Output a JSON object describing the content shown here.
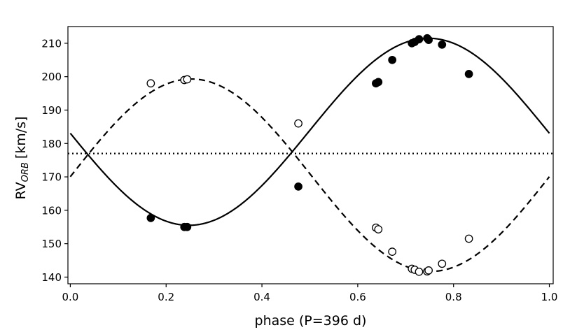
{
  "chart_data": {
    "type": "scatter",
    "xlabel": "phase (P=396 d)",
    "ylabel": {
      "main": "RV",
      "subscript": "ORB",
      "unit": "[km/s]"
    },
    "xlim": [
      -0.005,
      1.008
    ],
    "ylim": [
      138,
      215
    ],
    "xticks": [
      0.0,
      0.2,
      0.4,
      0.6,
      0.8,
      1.0
    ],
    "xtick_labels": [
      "0.0",
      "0.2",
      "0.4",
      "0.6",
      "0.8",
      "1.0"
    ],
    "yticks": [
      140,
      150,
      160,
      170,
      180,
      190,
      200,
      210
    ],
    "ytick_labels": [
      "140",
      "150",
      "160",
      "170",
      "180",
      "190",
      "200",
      "210"
    ],
    "grid": false,
    "systemic_velocity": 177,
    "series": [
      {
        "marker": "filled-circle",
        "line": "solid",
        "x": [
          0.168,
          0.238,
          0.244,
          0.476,
          0.638,
          0.643,
          0.672,
          0.713,
          0.719,
          0.728,
          0.745,
          0.748,
          0.776,
          0.832
        ],
        "y": [
          157.7,
          155.0,
          155.0,
          167.1,
          198.0,
          198.4,
          205.0,
          210.0,
          210.4,
          211.2,
          211.5,
          211.0,
          209.6,
          200.8
        ]
      },
      {
        "marker": "open-circle",
        "line": "dashed",
        "x": [
          0.168,
          0.238,
          0.244,
          0.476,
          0.638,
          0.643,
          0.672,
          0.713,
          0.719,
          0.728,
          0.745,
          0.748,
          0.776,
          0.832
        ],
        "y": [
          198.0,
          199.0,
          199.2,
          186.0,
          154.8,
          154.3,
          147.6,
          142.5,
          142.2,
          141.6,
          141.7,
          142.0,
          144.0,
          151.5
        ]
      }
    ],
    "model_curves": [
      {
        "line": "solid",
        "amplitude": 28,
        "max_phase": 0.7475,
        "offset": 183.5
      },
      {
        "line": "dashed",
        "amplitude": 28.8,
        "max_phase": 0.2525,
        "offset": 170.5
      }
    ]
  }
}
